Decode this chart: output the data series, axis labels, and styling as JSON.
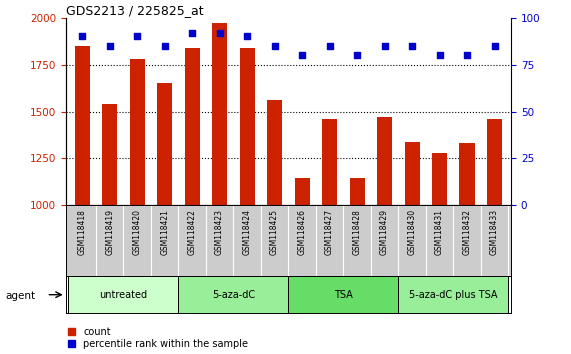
{
  "title": "GDS2213 / 225825_at",
  "samples": [
    "GSM118418",
    "GSM118419",
    "GSM118420",
    "GSM118421",
    "GSM118422",
    "GSM118423",
    "GSM118424",
    "GSM118425",
    "GSM118426",
    "GSM118427",
    "GSM118428",
    "GSM118429",
    "GSM118430",
    "GSM118431",
    "GSM118432",
    "GSM118433"
  ],
  "counts": [
    1850,
    1540,
    1780,
    1650,
    1840,
    1970,
    1840,
    1560,
    1145,
    1460,
    1145,
    1470,
    1340,
    1280,
    1330,
    1460
  ],
  "percentiles": [
    90,
    85,
    90,
    85,
    92,
    92,
    90,
    85,
    80,
    85,
    80,
    85,
    85,
    80,
    80,
    85
  ],
  "ylim_left": [
    1000,
    2000
  ],
  "ylim_right": [
    0,
    100
  ],
  "yticks_left": [
    1000,
    1250,
    1500,
    1750,
    2000
  ],
  "yticks_right": [
    0,
    25,
    50,
    75,
    100
  ],
  "bar_color": "#cc2200",
  "dot_color": "#0000cc",
  "agent_groups": [
    {
      "label": "untreated",
      "start": 0,
      "end": 3
    },
    {
      "label": "5-aza-dC",
      "start": 4,
      "end": 7
    },
    {
      "label": "TSA",
      "start": 8,
      "end": 11
    },
    {
      "label": "5-aza-dC plus TSA",
      "start": 12,
      "end": 15
    }
  ],
  "group_colors": [
    "#ccffcc",
    "#99ee99",
    "#66dd66",
    "#99ee99"
  ],
  "xlabels_bg": "#cccccc",
  "agent_label": "agent",
  "legend_count_label": "count",
  "legend_pct_label": "percentile rank within the sample"
}
